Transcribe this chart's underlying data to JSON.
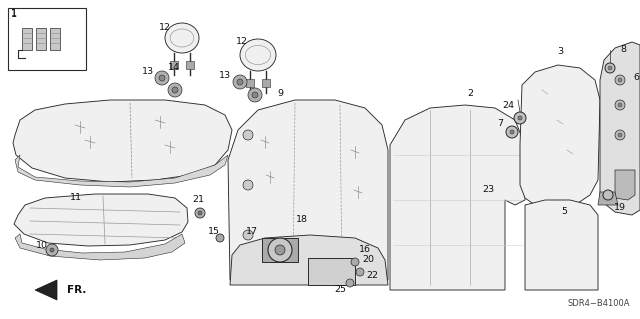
{
  "background_color": "#ffffff",
  "diagram_code": "SDR4−B4100A",
  "ec": "#2a2a2a",
  "fc_light": "#f0f0f0",
  "fc_mid": "#e0e0e0",
  "fc_dark": "#d0d0d0"
}
